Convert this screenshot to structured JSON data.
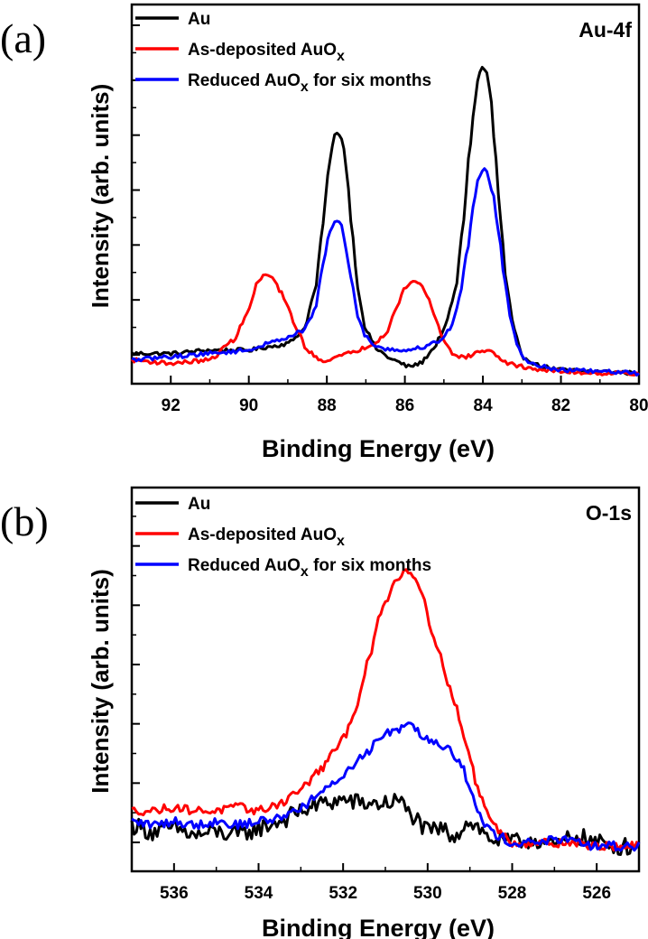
{
  "chart_data": [
    {
      "type": "line",
      "panel_label": "(a)",
      "corner_label": "Au-4f",
      "xlabel": "Binding Energy (eV)",
      "ylabel": "Intensity (arb. units)",
      "xlim": [
        93,
        80
      ],
      "x_ticks": [
        92,
        90,
        88,
        86,
        84,
        82,
        80
      ],
      "x_tick_labels": [
        "92",
        "90",
        "88",
        "86",
        "84",
        "82",
        "80"
      ],
      "ylim": [
        0,
        100
      ],
      "y_tick_labels_shown": false,
      "legend_position": "top-left",
      "series": [
        {
          "name": "Au",
          "name_sub": "",
          "name_suffix": "",
          "color": "#000000",
          "x": [
            93,
            92,
            91,
            90,
            89.5,
            89,
            88.6,
            88.3,
            88.1,
            87.95,
            87.8,
            87.7,
            87.6,
            87.5,
            87.35,
            87.2,
            87.0,
            86.7,
            86.3,
            85.9,
            85.6,
            85.3,
            85.0,
            84.7,
            84.5,
            84.35,
            84.2,
            84.1,
            84.0,
            83.9,
            83.8,
            83.7,
            83.55,
            83.4,
            83.2,
            83.0,
            82.5,
            82.0,
            81.0,
            80.0
          ],
          "y": [
            7,
            7,
            8,
            8,
            9,
            10,
            14,
            26,
            46,
            64,
            73,
            74,
            72,
            63,
            44,
            26,
            14,
            8,
            5,
            3,
            4,
            8,
            14,
            26,
            47,
            68,
            84,
            92,
            94,
            92,
            85,
            70,
            48,
            28,
            14,
            6,
            3,
            2,
            1.5,
            1
          ]
        },
        {
          "name": "As-deposited AuO",
          "name_sub": "x",
          "name_suffix": "",
          "color": "#ff0000",
          "x": [
            93,
            92,
            91,
            90.4,
            90.0,
            89.8,
            89.6,
            89.4,
            89.2,
            89.0,
            88.8,
            88.5,
            88.2,
            88.0,
            87.7,
            87.2,
            86.8,
            86.5,
            86.2,
            86.0,
            85.8,
            85.6,
            85.4,
            85.2,
            85.0,
            84.7,
            84.4,
            84.0,
            83.7,
            83.4,
            83.0,
            82.5,
            82.0,
            81.0,
            80.0
          ],
          "y": [
            5,
            4,
            5,
            11,
            20,
            28,
            31,
            30,
            26,
            21,
            15,
            8,
            5,
            5,
            6,
            8,
            10,
            13,
            21,
            27,
            29,
            28,
            24,
            17,
            11,
            6,
            6,
            8,
            7,
            4,
            3,
            2,
            1.5,
            1,
            1
          ]
        },
        {
          "name": "Reduced AuO",
          "name_sub": "x",
          "name_suffix": " for six months",
          "color": "#0000ff",
          "x": [
            93,
            92,
            91,
            90,
            89.5,
            89.0,
            88.6,
            88.3,
            88.1,
            87.95,
            87.8,
            87.7,
            87.6,
            87.5,
            87.35,
            87.2,
            87.0,
            86.7,
            86.3,
            85.9,
            85.5,
            85.1,
            84.8,
            84.6,
            84.4,
            84.25,
            84.1,
            84.0,
            83.9,
            83.75,
            83.6,
            83.45,
            83.3,
            83.1,
            82.9,
            82.5,
            82.0,
            81.0,
            80.0
          ],
          "y": [
            5,
            6,
            7,
            8,
            10,
            12,
            14,
            20,
            34,
            43,
            47,
            47,
            45,
            38,
            28,
            18,
            12,
            9,
            8,
            8,
            9,
            11,
            15,
            24,
            38,
            52,
            61,
            63,
            62,
            56,
            44,
            30,
            18,
            9,
            5,
            3,
            2,
            1.5,
            1
          ]
        }
      ]
    },
    {
      "type": "line",
      "panel_label": "(b)",
      "corner_label": "O-1s",
      "xlabel": "Binding Energy (eV)",
      "ylabel": "Intensity (arb. units)",
      "xlim": [
        537,
        525
      ],
      "x_ticks": [
        536,
        534,
        532,
        530,
        528,
        526
      ],
      "x_tick_labels": [
        "536",
        "534",
        "532",
        "530",
        "528",
        "526"
      ],
      "ylim": [
        0,
        100
      ],
      "y_tick_labels_shown": false,
      "legend_position": "top-left",
      "series": [
        {
          "name": "Au",
          "name_sub": "",
          "name_suffix": "",
          "color": "#000000",
          "x": [
            537,
            536.5,
            536.0,
            535.5,
            535.0,
            534.5,
            534.0,
            533.5,
            533.0,
            532.5,
            532.0,
            531.5,
            531.0,
            530.7,
            530.4,
            530.0,
            529.7,
            529.4,
            529.0,
            528.5,
            528.0,
            527.5,
            527.0,
            526.5,
            526.0,
            525.5,
            525.0
          ],
          "y": [
            11,
            9,
            10,
            8,
            9,
            8,
            10,
            12,
            15,
            17,
            18,
            17,
            17,
            18,
            14,
            9,
            10,
            8,
            12,
            7,
            6,
            7,
            5,
            8,
            6,
            5,
            5
          ],
          "jitter": 2.5
        },
        {
          "name": "As-deposited AuO",
          "name_sub": "x",
          "name_suffix": "",
          "color": "#ff0000",
          "x": [
            537,
            536.5,
            536.0,
            535.5,
            535.0,
            534.5,
            534.0,
            533.5,
            533.0,
            532.5,
            532.0,
            531.7,
            531.4,
            531.1,
            530.8,
            530.5,
            530.3,
            530.1,
            529.9,
            529.7,
            529.4,
            529.1,
            528.8,
            528.5,
            528.2,
            528.0,
            527.5,
            527.0,
            526.5,
            526.0,
            525.5,
            525.0
          ],
          "y": [
            15,
            15,
            16,
            15,
            15,
            16,
            15,
            17,
            21,
            27,
            35,
            44,
            57,
            71,
            79,
            83,
            81,
            75,
            66,
            58,
            47,
            34,
            21,
            12,
            8,
            6,
            6,
            6,
            6,
            5,
            5,
            5
          ],
          "jitter": 1.2
        },
        {
          "name": "Reduced AuO",
          "name_sub": "x",
          "name_suffix": " for six months",
          "color": "#0000ff",
          "x": [
            537,
            536.5,
            536.0,
            535.5,
            535.0,
            534.5,
            534.0,
            533.5,
            533.0,
            532.5,
            532.0,
            531.5,
            531.0,
            530.7,
            530.4,
            530.1,
            529.8,
            529.5,
            529.2,
            529.0,
            528.8,
            528.5,
            528.0,
            527.5,
            527.0,
            526.5,
            526.0,
            525.5,
            525.0
          ],
          "y": [
            12,
            11,
            12,
            11,
            12,
            11,
            12,
            13,
            16,
            20,
            25,
            31,
            37,
            38,
            40,
            36,
            34,
            33,
            28,
            21,
            14,
            9,
            6,
            6,
            7,
            6,
            5,
            5,
            5
          ],
          "jitter": 1.3
        }
      ]
    }
  ]
}
